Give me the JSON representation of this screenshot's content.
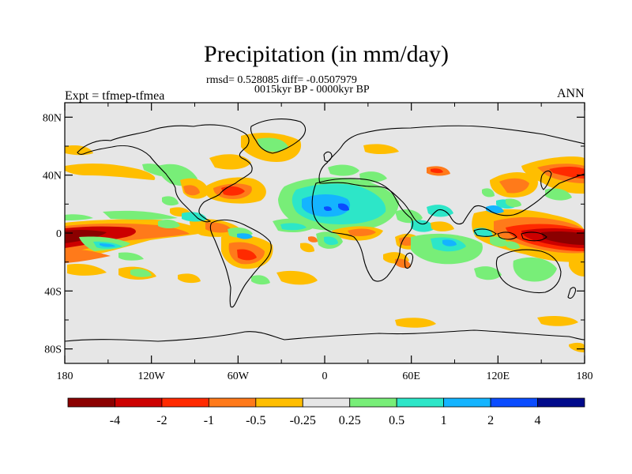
{
  "title": "Precipitation (in mm/day)",
  "stats": "rmsd= 0.528085 diff= -0.0507979",
  "period": "0015kyr BP - 0000kyr BP",
  "experiment": "Expt = tfmep-tfmea",
  "season": "ANN",
  "y_ticks": [
    "80N",
    "40N",
    "0",
    "40S",
    "80S"
  ],
  "x_ticks": [
    "180",
    "120W",
    "60W",
    "0",
    "60E",
    "120E",
    "180"
  ],
  "colorbar": {
    "labels": [
      "-4",
      "-2",
      "-1",
      "-0.5",
      "-0.25",
      "0.25",
      "0.5",
      "1",
      "2",
      "4"
    ],
    "colors": [
      "#8b0000",
      "#cc0000",
      "#ff2a00",
      "#ff7a1a",
      "#ffbe00",
      "#e6e6e6",
      "#78ee78",
      "#2de6c8",
      "#14b4ff",
      "#0a4cff",
      "#000a8b"
    ]
  },
  "chart_data": {
    "type": "heatmap",
    "projection": "cylindrical equidistant",
    "variable": "Precipitation difference (mm/day)",
    "lon_range": [
      -180,
      180
    ],
    "lat_range": [
      -90,
      90
    ],
    "levels": [
      -4,
      -2,
      -1,
      -0.5,
      -0.25,
      0.25,
      0.5,
      1,
      2,
      4
    ],
    "features": [
      {
        "region": "Central/West Pacific equatorial band",
        "lon": [
          -180,
          -140
        ],
        "lat": [
          -6,
          8
        ],
        "value": -4
      },
      {
        "region": "West Pacific warm pool",
        "lon": [
          150,
          180
        ],
        "lat": [
          -8,
          6
        ],
        "value": -4
      },
      {
        "region": "Eastern Pacific ITCZ",
        "lon": [
          -140,
          -80
        ],
        "lat": [
          2,
          10
        ],
        "value": -1
      },
      {
        "region": "Caribbean / Gulf of Mexico",
        "lon": [
          -95,
          -60
        ],
        "lat": [
          18,
          32
        ],
        "value": -2
      },
      {
        "region": "Sahara / North Africa",
        "lon": [
          -20,
          30
        ],
        "lat": [
          10,
          30
        ],
        "value": 1
      },
      {
        "region": "West Africa",
        "lon": [
          -10,
          10
        ],
        "lat": [
          5,
          15
        ],
        "value": 2
      },
      {
        "region": "Central Atlantic",
        "lon": [
          -35,
          -20
        ],
        "lat": [
          -15,
          0
        ],
        "value": -2
      },
      {
        "region": "South America east",
        "lon": [
          -50,
          -40
        ],
        "lat": [
          -15,
          -8
        ],
        "value": 1
      },
      {
        "region": "Indian Ocean",
        "lon": [
          60,
          100
        ],
        "lat": [
          -10,
          0
        ],
        "value": 0.5
      },
      {
        "region": "East China / Japan",
        "lon": [
          120,
          145
        ],
        "lat": [
          25,
          45
        ],
        "value": -0.5
      },
      {
        "region": "North Pacific storm track",
        "lon": [
          150,
          180
        ],
        "lat": [
          35,
          50
        ],
        "value": -1
      },
      {
        "region": "Southern Ocean",
        "lon": [
          60,
          100
        ],
        "lat": [
          -65,
          -55
        ],
        "value": -0.5
      }
    ]
  }
}
